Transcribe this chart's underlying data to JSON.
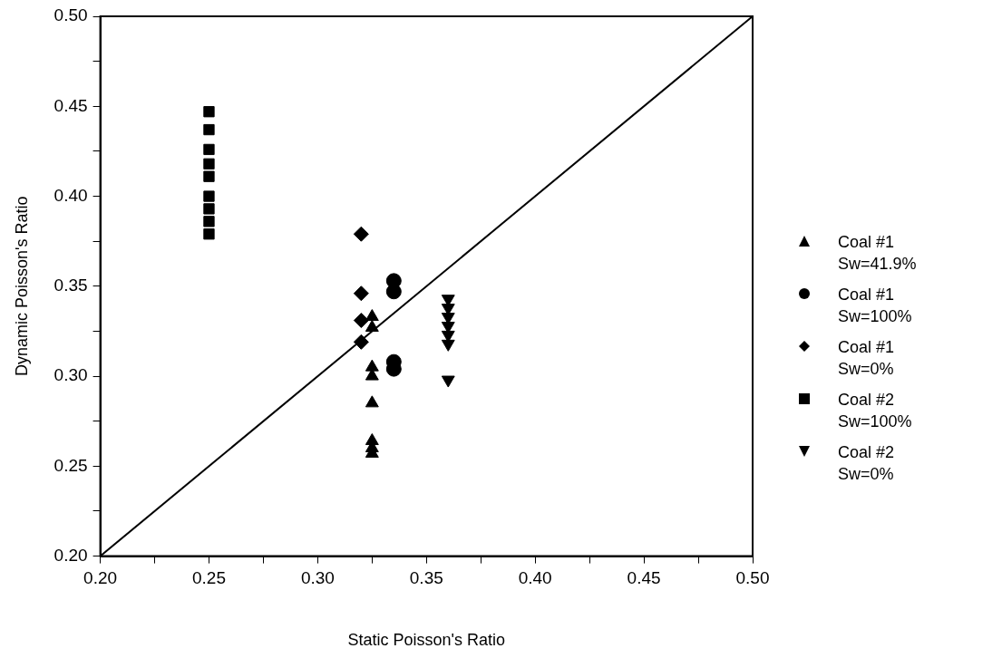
{
  "chart_data": {
    "type": "scatter",
    "xlabel": "Static Poisson's Ratio",
    "ylabel": "Dynamic Poisson's Ratio",
    "xlim": [
      0.2,
      0.5
    ],
    "ylim": [
      0.2,
      0.5
    ],
    "xticks": [
      {
        "value": 0.2,
        "label": "0.20"
      },
      {
        "value": 0.225,
        "label": null
      },
      0.25,
      {
        "value": 0.275,
        "label": null
      },
      {
        "value": 0.3,
        "label": "0.30"
      },
      {
        "value": 0.325,
        "label": null
      },
      0.35,
      {
        "value": 0.375,
        "label": null
      },
      {
        "value": 0.4,
        "label": "0.40"
      },
      {
        "value": 0.425,
        "label": null
      },
      0.45,
      {
        "value": 0.475,
        "label": null
      },
      {
        "value": 0.5,
        "label": "0.50"
      }
    ],
    "yticks": [
      {
        "value": 0.2,
        "label": "0.20"
      },
      {
        "value": 0.225,
        "label": null
      },
      0.25,
      {
        "value": 0.275,
        "label": null
      },
      {
        "value": 0.3,
        "label": "0.30"
      },
      {
        "value": 0.325,
        "label": null
      },
      0.35,
      {
        "value": 0.375,
        "label": null
      },
      {
        "value": 0.4,
        "label": "0.40"
      },
      {
        "value": 0.425,
        "label": null
      },
      0.45,
      {
        "value": 0.475,
        "label": null
      },
      {
        "value": 0.5,
        "label": "0.50"
      }
    ],
    "grid": false,
    "legend": "right",
    "series": [
      {
        "name": "Coal #1 Sw=41.9%",
        "color": "#000000",
        "marker": "triangle",
        "x": [
          0.325,
          0.325,
          0.325,
          0.325,
          0.325,
          0.325,
          0.325,
          0.325
        ],
        "values": [
          0.333,
          0.327,
          0.305,
          0.3,
          0.285,
          0.264,
          0.26,
          0.257
        ]
      },
      {
        "name": "Coal #1 Sw=100%",
        "color": "#000000",
        "marker": "circle",
        "x": [
          0.335,
          0.335,
          0.335,
          0.335
        ],
        "values": [
          0.353,
          0.347,
          0.308,
          0.304
        ]
      },
      {
        "name": "Coal #1 Sw=0%",
        "color": "#000000",
        "marker": "diamond",
        "x": [
          0.32,
          0.32,
          0.32,
          0.32
        ],
        "values": [
          0.379,
          0.346,
          0.331,
          0.319
        ]
      },
      {
        "name": "Coal #2 Sw=100%",
        "color": "#000000",
        "marker": "square",
        "x": [
          0.25,
          0.25,
          0.25,
          0.25,
          0.25,
          0.25,
          0.25,
          0.25,
          0.25
        ],
        "values": [
          0.447,
          0.437,
          0.426,
          0.418,
          0.411,
          0.4,
          0.393,
          0.386,
          0.379
        ]
      },
      {
        "name": "Coal #2 Sw=0%",
        "color": "#000000",
        "marker": "triangle_down",
        "x": [
          0.36,
          0.36,
          0.36,
          0.36,
          0.36,
          0.36,
          0.36
        ],
        "values": [
          0.343,
          0.338,
          0.333,
          0.328,
          0.323,
          0.318,
          0.298
        ]
      },
      {
        "type": "line",
        "color": "#000000",
        "marker": "none",
        "x": [
          0.2,
          0.5
        ],
        "values": [
          0.2,
          0.5
        ]
      }
    ]
  }
}
